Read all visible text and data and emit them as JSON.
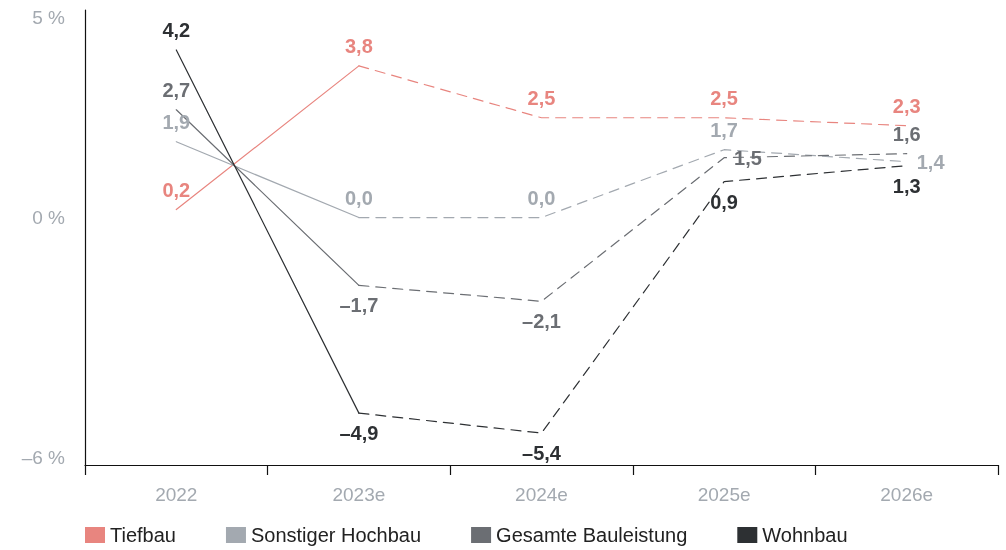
{
  "chart_data": {
    "type": "line",
    "categories": [
      "2022",
      "2023e",
      "2024e",
      "2025e",
      "2026e"
    ],
    "series": [
      {
        "name": "Tiefbau",
        "color": "#e8857f",
        "line_style": "dashed",
        "values": [
          null,
          3.8,
          2.5,
          2.5,
          2.3
        ],
        "value_labels": [
          null,
          "3,8",
          "2,5",
          "2,5",
          "2,3"
        ]
      },
      {
        "name": "Sonstiger Hochbau",
        "color": "#a3a9b0",
        "line_style": "dashed",
        "values": [
          null,
          0.0,
          0.0,
          1.7,
          1.4
        ],
        "value_labels": [
          null,
          "0,0",
          "0,0",
          "1,7",
          "1,4"
        ]
      },
      {
        "name": "Gesamte Bauleistung",
        "color": "#6b6e73",
        "line_style": "dashed",
        "values": [
          null,
          -1.7,
          -2.1,
          1.5,
          1.6
        ],
        "value_labels": [
          null,
          "–1,7",
          "–2,1",
          "1,5",
          "1,6"
        ]
      },
      {
        "name": "Wohnbau",
        "color": "#2d3033",
        "line_style": "dashed",
        "values": [
          null,
          -4.9,
          -5.4,
          0.9,
          1.3
        ],
        "value_labels": [
          null,
          "–4,9",
          "–5,4",
          "0,9",
          "1,3"
        ]
      },
      {
        "color": "#e8857f",
        "line_style": "solid",
        "values": [
          0.2,
          3.8,
          null,
          null,
          null
        ],
        "value_labels": [
          "0,2",
          null,
          null,
          null,
          null
        ]
      },
      {
        "color": "#a3a9b0",
        "line_style": "solid",
        "values": [
          1.9,
          0.0,
          null,
          null,
          null
        ],
        "value_labels": [
          "1,9",
          null,
          null,
          null,
          null
        ]
      },
      {
        "color": "#6b6e73",
        "line_style": "solid",
        "values": [
          2.7,
          -1.7,
          null,
          null,
          null
        ],
        "value_labels": [
          "2,7",
          null,
          null,
          null,
          null
        ]
      },
      {
        "color": "#2d3033",
        "line_style": "solid",
        "values": [
          4.2,
          -4.9,
          null,
          null,
          null
        ],
        "value_labels": [
          "4,2",
          null,
          null,
          null,
          null
        ]
      }
    ],
    "ylim": [
      -6.2,
      5.2
    ],
    "yticks": [
      {
        "value": 5,
        "label": "5 %"
      },
      {
        "value": 0,
        "label": "0 %"
      },
      {
        "value": -6,
        "label": "–6 %"
      }
    ],
    "grid": false,
    "legend": "bottom",
    "marker": "none"
  }
}
